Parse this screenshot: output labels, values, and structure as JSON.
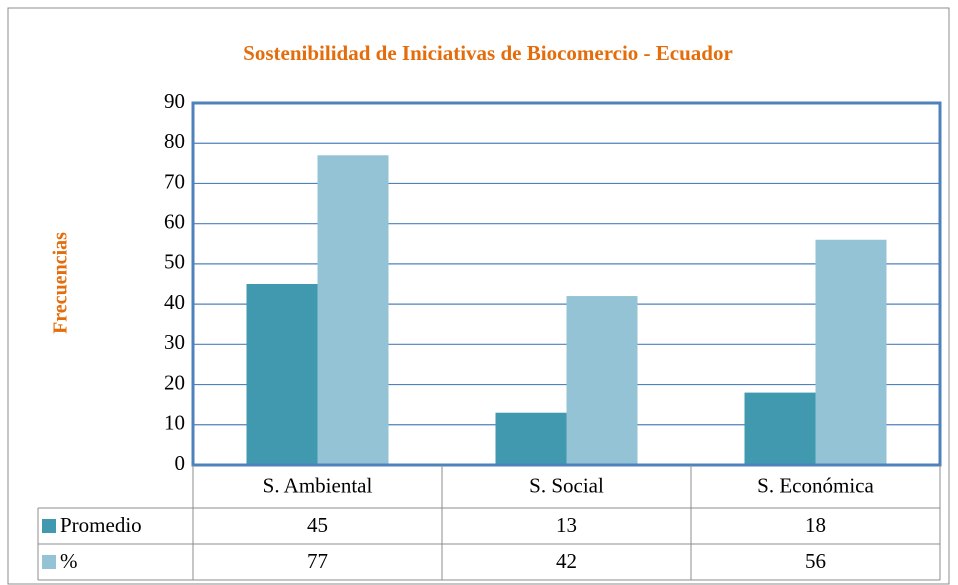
{
  "chart_data": {
    "type": "bar",
    "title": "Sostenibilidad de Iniciativas de Biocomercio - Ecuador",
    "y_label": "Frecuencias",
    "categories": [
      "S. Ambiental",
      "S. Social",
      "S. Económica"
    ],
    "series": [
      {
        "name": "Promedio",
        "color": "#4199AF",
        "values": [
          45,
          13,
          18
        ]
      },
      {
        "name": "%",
        "color": "#93C3D4",
        "values": [
          77,
          42,
          56
        ]
      }
    ],
    "ylim": [
      0,
      90
    ],
    "yticks": [
      0,
      10,
      20,
      30,
      40,
      50,
      60,
      70,
      80,
      90
    ],
    "grid": true
  }
}
